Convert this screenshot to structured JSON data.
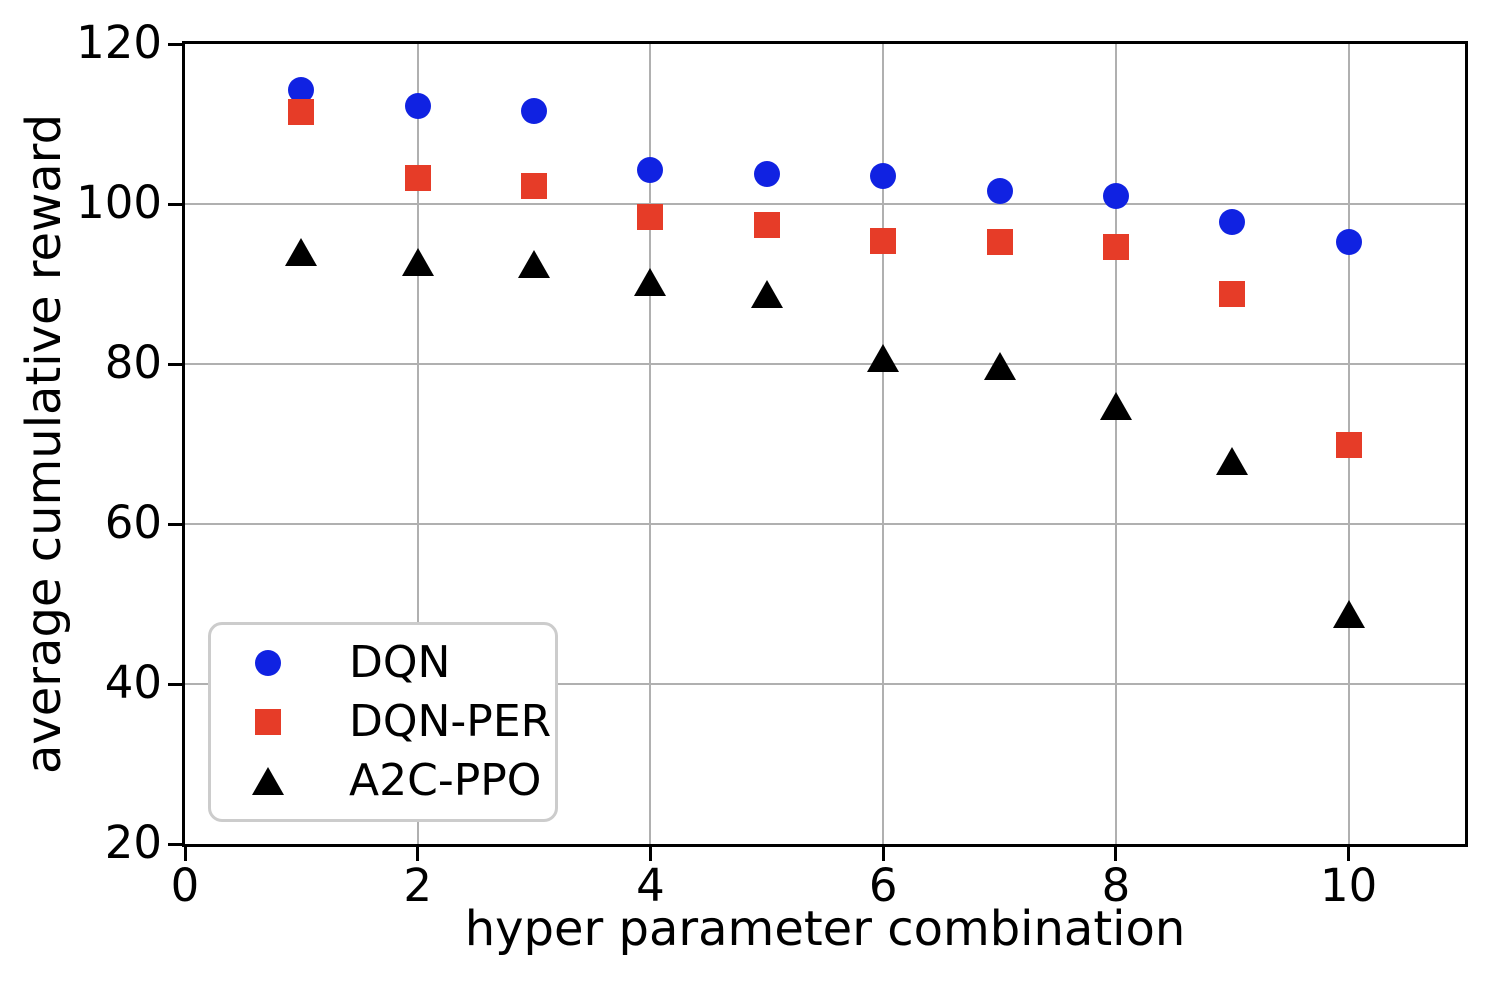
{
  "chart_data": {
    "type": "scatter",
    "title": "",
    "xlabel": "hyper parameter combination",
    "ylabel": "average cumulative reward",
    "xlim": [
      0,
      11
    ],
    "ylim": [
      20,
      120
    ],
    "x_ticks": [
      0,
      2,
      4,
      6,
      8,
      10
    ],
    "y_ticks": [
      20,
      40,
      60,
      80,
      100,
      120
    ],
    "grid": true,
    "grid_color": "#b0b0b0",
    "spine_color": "#000000",
    "background_color": "#ffffff",
    "legend": {
      "position": "lower-left",
      "border_color": "#cccccc",
      "background": "#ffffff"
    },
    "x": [
      1,
      2,
      3,
      4,
      5,
      6,
      7,
      8,
      9,
      10
    ],
    "series": [
      {
        "name": "DQN",
        "marker": "circle",
        "color": "#1022e2",
        "values": [
          114.2,
          112.2,
          111.6,
          104.2,
          103.8,
          103.5,
          101.6,
          101.0,
          97.8,
          95.2
        ]
      },
      {
        "name": "DQN-PER",
        "marker": "square",
        "color": "#e63c28",
        "values": [
          111.5,
          103.3,
          102.2,
          98.4,
          97.4,
          95.4,
          95.2,
          94.6,
          88.8,
          69.9
        ]
      },
      {
        "name": "A2C-PPO",
        "marker": "triangle",
        "color": "#000000",
        "values": [
          94.0,
          92.7,
          92.5,
          90.2,
          88.8,
          80.8,
          79.7,
          74.8,
          67.9,
          48.7
        ]
      }
    ]
  }
}
